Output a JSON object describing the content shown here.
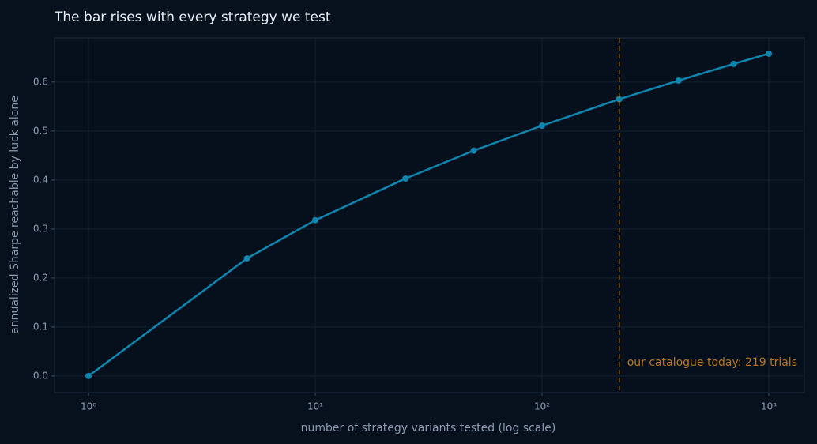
{
  "chart_data": {
    "type": "line",
    "title": "The bar rises with every strategy we test",
    "x_label": "number of strategy variants tested (log scale)",
    "y_label": "annualized Sharpe reachable by luck alone",
    "x": [
      1,
      5,
      10,
      25,
      50,
      100,
      219,
      400,
      700,
      1000
    ],
    "values": [
      0,
      0.24,
      0.318,
      0.403,
      0.46,
      0.511,
      0.565,
      0.603,
      0.637,
      0.658
    ],
    "color": "#0e86b0",
    "xscale": "log",
    "xlim": [
      0.708,
      1435
    ],
    "ylim": [
      -0.034,
      0.69
    ],
    "xticks": [
      {
        "value": 1,
        "label": "10⁰"
      },
      {
        "value": 10,
        "label": "10¹"
      },
      {
        "value": 100,
        "label": "10²"
      },
      {
        "value": 1000,
        "label": "10³"
      }
    ],
    "yticks": [
      {
        "value": 0,
        "label": "0.0"
      },
      0.1,
      0.2,
      0.3,
      0.4,
      0.5,
      0.6
    ],
    "grid": true,
    "vline": {
      "x": 219,
      "label": "our catalogue today: 219 trials",
      "color": "#b8741a"
    }
  }
}
